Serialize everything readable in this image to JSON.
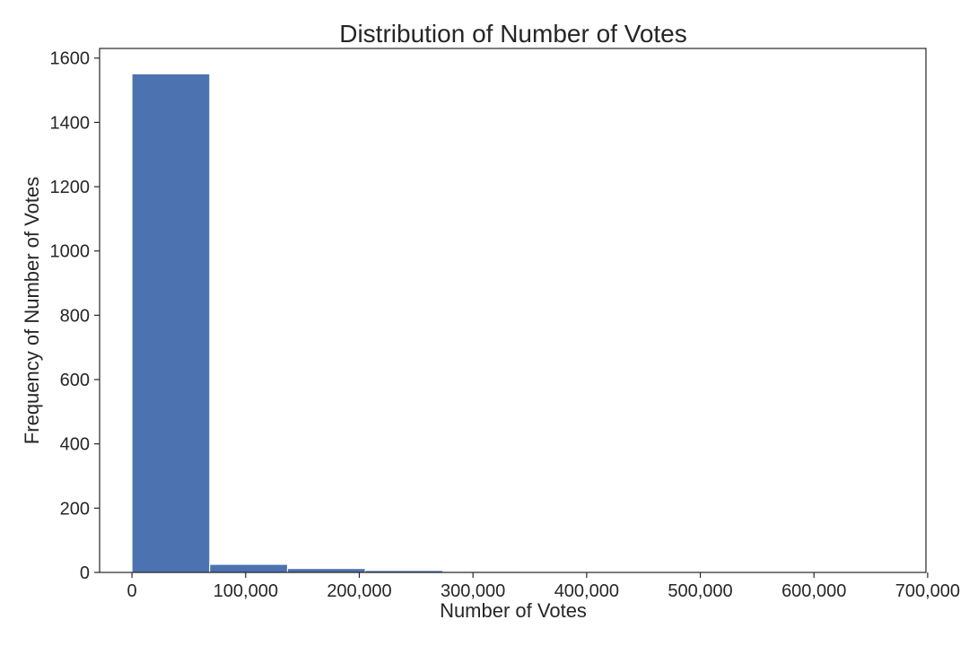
{
  "chart_data": {
    "type": "bar",
    "subtype": "histogram",
    "title": "Distribution of Number of Votes",
    "xlabel": "Number of Votes",
    "ylabel": "Frequency of Number of Votes",
    "xlim": [
      -28500,
      698500
    ],
    "ylim": [
      0,
      1630
    ],
    "bin_edges": [
      0,
      68400,
      136800,
      205200,
      273600,
      342000,
      410400,
      478800,
      547200,
      615600,
      684000
    ],
    "values": [
      1551,
      25,
      12,
      6,
      3,
      2,
      0,
      0,
      0,
      1
    ],
    "bar_color": "#4c72b0",
    "grid": false,
    "x_ticks": [
      0,
      100000,
      200000,
      300000,
      400000,
      500000,
      600000,
      700000
    ],
    "x_tick_labels": [
      "0",
      "100,000",
      "200,000",
      "300,000",
      "400,000",
      "500,000",
      "600,000",
      "700,000"
    ],
    "y_ticks": [
      0,
      200,
      400,
      600,
      800,
      1000,
      1200,
      1400,
      1600
    ],
    "y_tick_labels": [
      "0",
      "200",
      "400",
      "600",
      "800",
      "1000",
      "1200",
      "1400",
      "1600"
    ]
  }
}
